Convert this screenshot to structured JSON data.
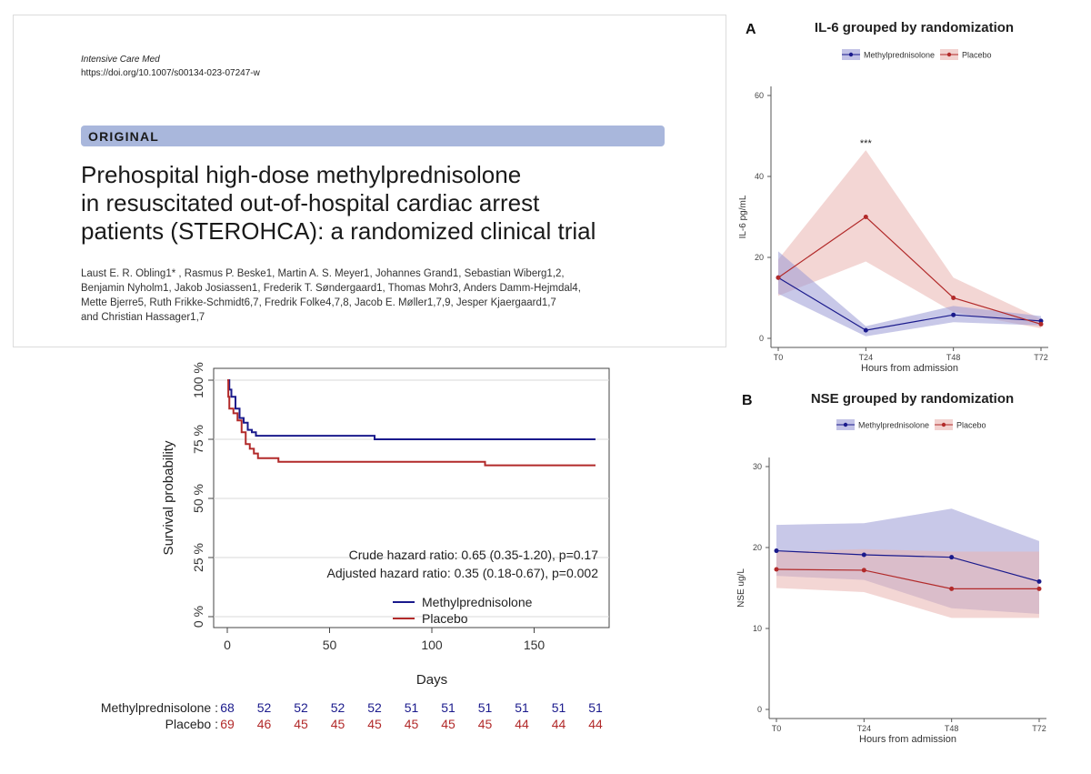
{
  "paper": {
    "journal": "Intensive Care Med",
    "doi": "https://doi.org/10.1007/s00134-023-07247-w",
    "section": "ORIGINAL",
    "title_lines": [
      "Prehospital high-dose methylprednisolone",
      "in resuscitated out-of-hospital cardiac arrest",
      "patients (STEROHCA): a randomized clinical trial"
    ],
    "author_lines": [
      "Laust E. R. Obling1* , Rasmus P. Beske1, Martin A. S. Meyer1, Johannes Grand1, Sebastian Wiberg1,2,",
      "Benjamin Nyholm1, Jakob Josiassen1, Frederik T. Søndergaard1, Thomas Mohr3, Anders Damm-Hejmdal4,",
      "Mette Bjerre5, Ruth Frikke-Schmidt6,7, Fredrik Folke4,7,8, Jacob E. Møller1,7,9, Jesper Kjaergaard1,7",
      "and Christian Hassager1,7"
    ]
  },
  "colors": {
    "methyl": "#1a1a8c",
    "placebo": "#b22a2a",
    "methyl_band": "#9a9ad6",
    "placebo_band": "#eab4b0"
  },
  "chart_data": [
    {
      "id": "km",
      "type": "line",
      "title": "",
      "xlabel": "Days",
      "ylabel": "Survival probability",
      "xlim": [
        0,
        180
      ],
      "ylim": [
        0,
        1
      ],
      "x_ticks": [
        "0",
        "50",
        "100",
        "150"
      ],
      "x_tick_values": [
        0,
        50,
        100,
        150
      ],
      "y_ticks": [
        "0 %",
        "25 %",
        "50 %",
        "75 %",
        "100 %"
      ],
      "y_tick_values": [
        0,
        0.25,
        0.5,
        0.75,
        1.0
      ],
      "annotations": [
        "Crude hazard ratio: 0.65 (0.35-1.20), p=0.17",
        "Adjusted hazard ratio: 0.35 (0.18-0.67), p=0.002"
      ],
      "legend": [
        "Methylprednisolone",
        "Placebo"
      ],
      "series": [
        {
          "name": "Methylprednisolone",
          "steps": [
            [
              0,
              1.0
            ],
            [
              1,
              0.96
            ],
            [
              2,
              0.93
            ],
            [
              4,
              0.88
            ],
            [
              6,
              0.84
            ],
            [
              8,
              0.82
            ],
            [
              10,
              0.79
            ],
            [
              12,
              0.78
            ],
            [
              14,
              0.765
            ],
            [
              72,
              0.765
            ],
            [
              72,
              0.75
            ],
            [
              180,
              0.75
            ]
          ]
        },
        {
          "name": "Placebo",
          "steps": [
            [
              0,
              1.0
            ],
            [
              0.5,
              0.93
            ],
            [
              1,
              0.88
            ],
            [
              3,
              0.86
            ],
            [
              5,
              0.83
            ],
            [
              7,
              0.78
            ],
            [
              9,
              0.73
            ],
            [
              11,
              0.71
            ],
            [
              13,
              0.69
            ],
            [
              15,
              0.67
            ],
            [
              25,
              0.67
            ],
            [
              25,
              0.655
            ],
            [
              126,
              0.655
            ],
            [
              126,
              0.64
            ],
            [
              180,
              0.64
            ]
          ]
        }
      ],
      "risk_table": {
        "labels": [
          "Methylprednisolone :",
          "Placebo :"
        ],
        "times": [
          0,
          18,
          36,
          54,
          72,
          90,
          108,
          126,
          144,
          162,
          180
        ],
        "methyl": [
          "68",
          "52",
          "52",
          "52",
          "52",
          "51",
          "51",
          "51",
          "51",
          "51",
          "51"
        ],
        "placebo": [
          "69",
          "46",
          "45",
          "45",
          "45",
          "45",
          "45",
          "45",
          "44",
          "44",
          "44"
        ]
      }
    },
    {
      "id": "il6",
      "panel_letter": "A",
      "type": "line",
      "title": "IL-6 grouped by randomization",
      "xlabel": "Hours from admission",
      "ylabel": "IL-6 pg/mL",
      "categories": [
        "T0",
        "T24",
        "T48",
        "T72"
      ],
      "ylim": [
        0,
        60
      ],
      "y_ticks": [
        "0",
        "20",
        "40",
        "60"
      ],
      "y_tick_values": [
        0,
        20,
        40,
        60
      ],
      "annotation": "***",
      "annotation_at": "T24",
      "legend": [
        "Methylprednisolone",
        "Placebo"
      ],
      "series": [
        {
          "name": "Methylprednisolone",
          "values": [
            15,
            2,
            5.8,
            4.3
          ],
          "lower": [
            11,
            0.5,
            4,
            3.2
          ],
          "upper": [
            21.5,
            3,
            8,
            5.5
          ]
        },
        {
          "name": "Placebo",
          "values": [
            15,
            30,
            10,
            3.5
          ],
          "lower": [
            10.5,
            19,
            6.5,
            2.5
          ],
          "upper": [
            19.5,
            46.5,
            15,
            4.8
          ]
        }
      ]
    },
    {
      "id": "nse",
      "panel_letter": "B",
      "type": "line",
      "title": "NSE grouped by randomization",
      "xlabel": "Hours from admission",
      "ylabel": "NSE ug/L",
      "categories": [
        "T0",
        "T24",
        "T48",
        "T72"
      ],
      "ylim": [
        0,
        30
      ],
      "y_ticks": [
        "0",
        "10",
        "20",
        "30"
      ],
      "y_tick_values": [
        0,
        10,
        20,
        30
      ],
      "legend": [
        "Methylprednisolone",
        "Placebo"
      ],
      "series": [
        {
          "name": "Methylprednisolone",
          "values": [
            19.6,
            19.1,
            18.8,
            15.8
          ],
          "lower": [
            16.5,
            16,
            12.5,
            11.8
          ],
          "upper": [
            22.8,
            23,
            24.8,
            20.8
          ]
        },
        {
          "name": "Placebo",
          "values": [
            17.3,
            17.2,
            14.9,
            14.9
          ],
          "lower": [
            15,
            14.5,
            11.3,
            11.3
          ],
          "upper": [
            19.5,
            19.8,
            19.5,
            19.5
          ]
        }
      ]
    }
  ]
}
